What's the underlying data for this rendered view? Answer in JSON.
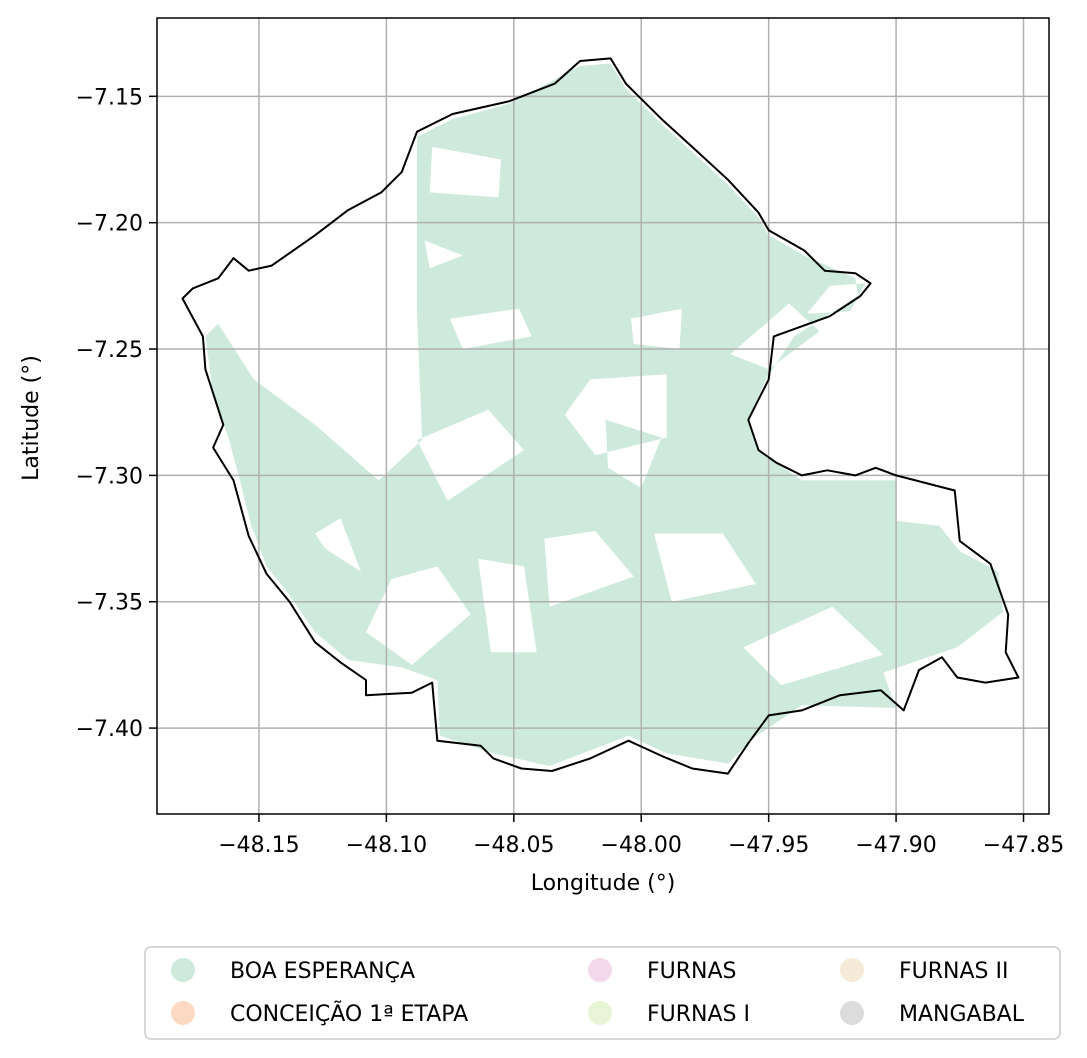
{
  "chart_data": {
    "type": "choropleth-map",
    "title": "",
    "xlabel": "Longitude (°)",
    "ylabel": "Latitude (°)",
    "xlim": [
      -48.19,
      -47.84
    ],
    "ylim": [
      -7.434,
      -7.119
    ],
    "x_ticks": [
      -48.15,
      -48.1,
      -48.05,
      -48.0,
      -47.95,
      -47.9,
      -47.85
    ],
    "x_tick_labels": [
      "−48.15",
      "−48.10",
      "−48.05",
      "−48.00",
      "−47.95",
      "−47.90",
      "−47.85"
    ],
    "y_ticks": [
      -7.15,
      -7.2,
      -7.25,
      -7.3,
      -7.35,
      -7.4
    ],
    "y_tick_labels": [
      "−7.15",
      "−7.20",
      "−7.25",
      "−7.30",
      "−7.35",
      "−7.40"
    ],
    "grid": true,
    "legend_position": "bottom",
    "legend": [
      {
        "label": "BOA ESPERANÇA",
        "color": "#cdeadd"
      },
      {
        "label": "CONCEIÇÃO 1ª ETAPA",
        "color": "#fdd9c1"
      },
      {
        "label": "FURNAS",
        "color": "#f4d8eb"
      },
      {
        "label": "FURNAS I",
        "color": "#e9f5d7"
      },
      {
        "label": "FURNAS II",
        "color": "#f6ead8"
      },
      {
        "label": "MANGABAL",
        "color": "#dcdcdc"
      }
    ],
    "boundary_outline": [
      [
        -48.176,
        -7.226
      ],
      [
        -48.166,
        -7.222
      ],
      [
        -48.16,
        -7.214
      ],
      [
        -48.154,
        -7.219
      ],
      [
        -48.145,
        -7.217
      ],
      [
        -48.128,
        -7.205
      ],
      [
        -48.115,
        -7.195
      ],
      [
        -48.102,
        -7.188
      ],
      [
        -48.094,
        -7.18
      ],
      [
        -48.088,
        -7.164
      ],
      [
        -48.074,
        -7.157
      ],
      [
        -48.052,
        -7.152
      ],
      [
        -48.034,
        -7.145
      ],
      [
        -48.024,
        -7.136
      ],
      [
        -48.012,
        -7.135
      ],
      [
        -48.006,
        -7.145
      ],
      [
        -47.992,
        -7.159
      ],
      [
        -47.98,
        -7.17
      ],
      [
        -47.966,
        -7.183
      ],
      [
        -47.954,
        -7.196
      ],
      [
        -47.95,
        -7.203
      ],
      [
        -47.943,
        -7.207
      ],
      [
        -47.936,
        -7.211
      ],
      [
        -47.928,
        -7.219
      ],
      [
        -47.916,
        -7.22
      ],
      [
        -47.91,
        -7.224
      ],
      [
        -47.914,
        -7.229
      ],
      [
        -47.926,
        -7.237
      ],
      [
        -47.948,
        -7.245
      ],
      [
        -47.95,
        -7.262
      ],
      [
        -47.958,
        -7.278
      ],
      [
        -47.954,
        -7.29
      ],
      [
        -47.947,
        -7.295
      ],
      [
        -47.937,
        -7.3
      ],
      [
        -47.927,
        -7.298
      ],
      [
        -47.916,
        -7.3
      ],
      [
        -47.908,
        -7.297
      ],
      [
        -47.9,
        -7.3
      ],
      [
        -47.877,
        -7.306
      ],
      [
        -47.875,
        -7.326
      ],
      [
        -47.863,
        -7.335
      ],
      [
        -47.856,
        -7.355
      ],
      [
        -47.857,
        -7.37
      ],
      [
        -47.852,
        -7.38
      ],
      [
        -47.865,
        -7.382
      ],
      [
        -47.876,
        -7.38
      ],
      [
        -47.882,
        -7.372
      ],
      [
        -47.891,
        -7.377
      ],
      [
        -47.897,
        -7.393
      ],
      [
        -47.906,
        -7.385
      ],
      [
        -47.922,
        -7.387
      ],
      [
        -47.937,
        -7.393
      ],
      [
        -47.95,
        -7.395
      ],
      [
        -47.958,
        -7.406
      ],
      [
        -47.966,
        -7.418
      ],
      [
        -47.98,
        -7.416
      ],
      [
        -47.992,
        -7.411
      ],
      [
        -48.005,
        -7.405
      ],
      [
        -48.02,
        -7.412
      ],
      [
        -48.035,
        -7.417
      ],
      [
        -48.047,
        -7.416
      ],
      [
        -48.058,
        -7.412
      ],
      [
        -48.063,
        -7.407
      ],
      [
        -48.08,
        -7.405
      ],
      [
        -48.082,
        -7.382
      ],
      [
        -48.09,
        -7.386
      ],
      [
        -48.108,
        -7.387
      ],
      [
        -48.108,
        -7.381
      ],
      [
        -48.118,
        -7.374
      ],
      [
        -48.128,
        -7.366
      ],
      [
        -48.138,
        -7.35
      ],
      [
        -48.147,
        -7.339
      ],
      [
        -48.154,
        -7.324
      ],
      [
        -48.16,
        -7.302
      ],
      [
        -48.168,
        -7.289
      ],
      [
        -48.164,
        -7.28
      ],
      [
        -48.171,
        -7.258
      ],
      [
        -48.172,
        -7.245
      ],
      [
        -48.18,
        -7.23
      ]
    ],
    "filled_area_outline": [
      [
        -48.166,
        -7.24
      ],
      [
        -48.152,
        -7.262
      ],
      [
        -48.128,
        -7.28
      ],
      [
        -48.103,
        -7.302
      ],
      [
        -48.086,
        -7.286
      ],
      [
        -48.088,
        -7.236
      ],
      [
        -48.088,
        -7.166
      ],
      [
        -48.074,
        -7.159
      ],
      [
        -48.052,
        -7.153
      ],
      [
        -48.024,
        -7.138
      ],
      [
        -48.012,
        -7.137
      ],
      [
        -48.006,
        -7.147
      ],
      [
        -47.992,
        -7.161
      ],
      [
        -47.98,
        -7.172
      ],
      [
        -47.966,
        -7.185
      ],
      [
        -47.954,
        -7.198
      ],
      [
        -47.95,
        -7.205
      ],
      [
        -47.936,
        -7.213
      ],
      [
        -47.916,
        -7.222
      ],
      [
        -47.915,
        -7.229
      ],
      [
        -47.94,
        -7.245
      ],
      [
        -47.951,
        -7.262
      ],
      [
        -47.958,
        -7.278
      ],
      [
        -47.954,
        -7.29
      ],
      [
        -47.937,
        -7.302
      ],
      [
        -47.916,
        -7.302
      ],
      [
        -47.9,
        -7.302
      ],
      [
        -47.9,
        -7.318
      ],
      [
        -47.883,
        -7.32
      ],
      [
        -47.875,
        -7.33
      ],
      [
        -47.86,
        -7.338
      ],
      [
        -47.858,
        -7.354
      ],
      [
        -47.876,
        -7.368
      ],
      [
        -47.905,
        -7.378
      ],
      [
        -47.9,
        -7.392
      ],
      [
        -47.937,
        -7.391
      ],
      [
        -47.956,
        -7.404
      ],
      [
        -47.966,
        -7.414
      ],
      [
        -47.99,
        -7.41
      ],
      [
        -48.005,
        -7.403
      ],
      [
        -48.036,
        -7.415
      ],
      [
        -48.058,
        -7.41
      ],
      [
        -48.079,
        -7.403
      ],
      [
        -48.08,
        -7.381
      ],
      [
        -48.094,
        -7.376
      ],
      [
        -48.115,
        -7.373
      ],
      [
        -48.128,
        -7.362
      ],
      [
        -48.139,
        -7.346
      ],
      [
        -48.147,
        -7.336
      ],
      [
        -48.153,
        -7.32
      ],
      [
        -48.158,
        -7.3
      ],
      [
        -48.162,
        -7.285
      ],
      [
        -48.168,
        -7.268
      ],
      [
        -48.171,
        -7.245
      ]
    ],
    "holes": [
      [
        [
          -48.088,
          -7.286
        ],
        [
          -48.06,
          -7.274
        ],
        [
          -48.046,
          -7.29
        ],
        [
          -48.076,
          -7.31
        ]
      ],
      [
        [
          -48.02,
          -7.262
        ],
        [
          -47.99,
          -7.26
        ],
        [
          -47.99,
          -7.285
        ],
        [
          -48.018,
          -7.292
        ],
        [
          -48.03,
          -7.276
        ]
      ],
      [
        [
          -48.038,
          -7.325
        ],
        [
          -48.018,
          -7.322
        ],
        [
          -48.003,
          -7.34
        ],
        [
          -48.036,
          -7.352
        ]
      ],
      [
        [
          -48.064,
          -7.333
        ],
        [
          -48.046,
          -7.336
        ],
        [
          -48.041,
          -7.37
        ],
        [
          -48.059,
          -7.37
        ]
      ],
      [
        [
          -48.098,
          -7.341
        ],
        [
          -48.08,
          -7.336
        ],
        [
          -48.067,
          -7.355
        ],
        [
          -48.09,
          -7.375
        ],
        [
          -48.108,
          -7.362
        ]
      ],
      [
        [
          -47.965,
          -7.252
        ],
        [
          -47.942,
          -7.232
        ],
        [
          -47.93,
          -7.243
        ],
        [
          -47.95,
          -7.258
        ]
      ],
      [
        [
          -47.926,
          -7.225
        ],
        [
          -47.912,
          -7.224
        ],
        [
          -47.918,
          -7.235
        ],
        [
          -47.935,
          -7.236
        ]
      ],
      [
        [
          -47.995,
          -7.323
        ],
        [
          -47.968,
          -7.323
        ],
        [
          -47.955,
          -7.343
        ],
        [
          -47.988,
          -7.35
        ]
      ],
      [
        [
          -47.96,
          -7.368
        ],
        [
          -47.925,
          -7.352
        ],
        [
          -47.905,
          -7.371
        ],
        [
          -47.945,
          -7.383
        ]
      ],
      [
        [
          -48.082,
          -7.17
        ],
        [
          -48.055,
          -7.175
        ],
        [
          -48.056,
          -7.19
        ],
        [
          -48.083,
          -7.188
        ]
      ],
      [
        [
          -48.085,
          -7.207
        ],
        [
          -48.07,
          -7.213
        ],
        [
          -48.083,
          -7.218
        ]
      ],
      [
        [
          -48.075,
          -7.238
        ],
        [
          -48.048,
          -7.234
        ],
        [
          -48.043,
          -7.245
        ],
        [
          -48.07,
          -7.25
        ]
      ],
      [
        [
          -48.004,
          -7.238
        ],
        [
          -47.984,
          -7.234
        ],
        [
          -47.985,
          -7.25
        ],
        [
          -48.003,
          -7.248
        ]
      ],
      [
        [
          -48.014,
          -7.278
        ],
        [
          -47.992,
          -7.285
        ],
        [
          -48.0,
          -7.305
        ],
        [
          -48.013,
          -7.297
        ]
      ],
      [
        [
          -48.128,
          -7.323
        ],
        [
          -48.118,
          -7.317
        ],
        [
          -48.11,
          -7.338
        ],
        [
          -48.124,
          -7.329
        ]
      ]
    ]
  }
}
